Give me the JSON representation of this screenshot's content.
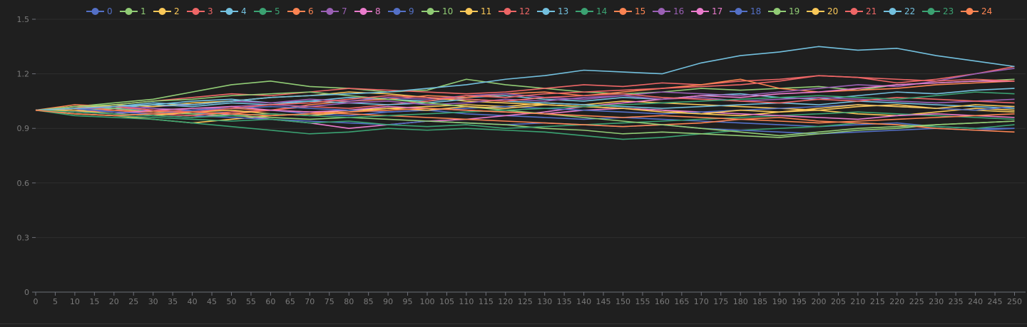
{
  "chart_data": {
    "type": "line",
    "title": "",
    "xlabel": "",
    "ylabel": "",
    "legend_position": "top",
    "grid": true,
    "ylim": [
      0,
      1.5
    ],
    "y_ticks": [
      0,
      0.3,
      0.6,
      0.9,
      1.2,
      1.5
    ],
    "y_tick_labels": [
      "0",
      "0.3",
      "0.6",
      "0.9",
      "1.2",
      "1.5"
    ],
    "x_range": [
      0,
      251
    ],
    "x_tick_interval": 5,
    "x": [
      0,
      10,
      20,
      30,
      40,
      50,
      60,
      70,
      80,
      90,
      100,
      110,
      120,
      130,
      140,
      150,
      160,
      170,
      180,
      190,
      200,
      210,
      220,
      230,
      240,
      250
    ],
    "colors": [
      "#5470c6",
      "#91cc75",
      "#fac858",
      "#ee6666",
      "#73c0de",
      "#3ba272",
      "#fc8452",
      "#9a60b4",
      "#ea7ccc"
    ],
    "series": [
      {
        "name": "0",
        "values": [
          1.0,
          0.99,
          1.01,
          1.0,
          0.98,
          0.99,
          1.0,
          0.98,
          0.97,
          0.99,
          1.0,
          0.98,
          0.97,
          0.96,
          0.95,
          0.96,
          0.95,
          0.94,
          0.93,
          0.92,
          0.91,
          0.92,
          0.93,
          0.91,
          0.9,
          0.9
        ]
      },
      {
        "name": "1",
        "values": [
          1.0,
          1.02,
          1.04,
          1.06,
          1.1,
          1.14,
          1.16,
          1.13,
          1.12,
          1.1,
          1.11,
          1.17,
          1.14,
          1.12,
          1.1,
          1.09,
          1.1,
          1.12,
          1.11,
          1.12,
          1.13,
          1.11,
          1.14,
          1.15,
          1.16,
          1.17
        ]
      },
      {
        "name": "2",
        "values": [
          1.0,
          0.98,
          0.97,
          0.95,
          0.93,
          0.95,
          0.97,
          0.98,
          1.0,
          1.01,
          1.02,
          1.03,
          1.02,
          1.04,
          1.03,
          1.05,
          1.04,
          1.03,
          1.02,
          1.01,
          1.0,
          1.02,
          1.03,
          1.01,
          1.0,
          0.99
        ]
      },
      {
        "name": "3",
        "values": [
          1.0,
          1.01,
          1.03,
          1.05,
          1.07,
          1.09,
          1.08,
          1.1,
          1.12,
          1.11,
          1.1,
          1.09,
          1.1,
          1.12,
          1.14,
          1.13,
          1.15,
          1.14,
          1.16,
          1.17,
          1.19,
          1.18,
          1.15,
          1.17,
          1.2,
          1.24
        ]
      },
      {
        "name": "4",
        "values": [
          1.0,
          1.02,
          1.01,
          1.03,
          1.05,
          1.06,
          1.04,
          1.05,
          1.07,
          1.06,
          1.05,
          1.07,
          1.08,
          1.06,
          1.05,
          1.07,
          1.06,
          1.08,
          1.09,
          1.07,
          1.06,
          1.08,
          1.1,
          1.09,
          1.11,
          1.12
        ]
      },
      {
        "name": "5",
        "values": [
          1.0,
          0.97,
          0.96,
          0.95,
          0.93,
          0.91,
          0.89,
          0.87,
          0.88,
          0.9,
          0.89,
          0.9,
          0.89,
          0.88,
          0.86,
          0.84,
          0.85,
          0.87,
          0.89,
          0.9,
          0.91,
          0.93,
          0.92,
          0.91,
          0.9,
          0.92
        ]
      },
      {
        "name": "6",
        "values": [
          1.0,
          1.03,
          1.02,
          1.0,
          0.99,
          0.98,
          1.0,
          1.03,
          1.05,
          1.06,
          1.08,
          1.07,
          1.09,
          1.1,
          1.08,
          1.1,
          1.12,
          1.14,
          1.17,
          1.12,
          1.1,
          1.11,
          1.12,
          1.14,
          1.15,
          1.16
        ]
      },
      {
        "name": "7",
        "values": [
          1.0,
          1.01,
          1.0,
          1.02,
          1.03,
          1.05,
          1.04,
          1.06,
          1.05,
          1.07,
          1.06,
          1.08,
          1.09,
          1.07,
          1.06,
          1.08,
          1.1,
          1.09,
          1.08,
          1.1,
          1.12,
          1.14,
          1.13,
          1.16,
          1.2,
          1.23
        ]
      },
      {
        "name": "8",
        "values": [
          1.0,
          0.99,
          0.98,
          0.97,
          0.96,
          0.98,
          0.95,
          0.93,
          0.9,
          0.92,
          0.94,
          0.95,
          0.97,
          0.99,
          1.02,
          1.04,
          1.06,
          1.08,
          1.07,
          1.09,
          1.1,
          1.12,
          1.14,
          1.15,
          1.16,
          1.16
        ]
      },
      {
        "name": "9",
        "values": [
          1.0,
          1.0,
          0.99,
          0.98,
          0.97,
          0.96,
          0.95,
          0.94,
          0.93,
          0.92,
          0.94,
          0.93,
          0.92,
          0.93,
          0.92,
          0.91,
          0.92,
          0.9,
          0.89,
          0.88,
          0.87,
          0.88,
          0.89,
          0.9,
          0.89,
          0.9
        ]
      },
      {
        "name": "10",
        "values": [
          1.0,
          1.0,
          1.01,
          0.99,
          0.98,
          0.97,
          0.96,
          0.95,
          0.96,
          0.95,
          0.94,
          0.93,
          0.92,
          0.9,
          0.89,
          0.87,
          0.88,
          0.87,
          0.86,
          0.85,
          0.87,
          0.89,
          0.9,
          0.92,
          0.93,
          0.94
        ]
      },
      {
        "name": "11",
        "values": [
          1.0,
          1.01,
          1.03,
          1.02,
          1.04,
          1.05,
          1.07,
          1.08,
          1.1,
          1.09,
          1.07,
          1.05,
          1.04,
          1.03,
          1.02,
          1.01,
          1.0,
          0.98,
          0.97,
          0.99,
          1.0,
          0.98,
          0.97,
          0.99,
          1.01,
          1.0
        ]
      },
      {
        "name": "12",
        "values": [
          1.0,
          0.99,
          1.0,
          0.98,
          0.97,
          0.99,
          1.0,
          1.02,
          1.01,
          1.03,
          1.05,
          1.08,
          1.07,
          1.09,
          1.1,
          1.11,
          1.12,
          1.13,
          1.14,
          1.16,
          1.19,
          1.18,
          1.17,
          1.16,
          1.17,
          1.16
        ]
      },
      {
        "name": "13",
        "values": [
          1.0,
          1.01,
          1.02,
          1.03,
          1.02,
          1.04,
          1.03,
          1.05,
          1.04,
          1.03,
          1.04,
          1.06,
          1.05,
          1.04,
          1.03,
          1.02,
          1.01,
          1.02,
          1.03,
          1.04,
          1.03,
          1.05,
          1.04,
          1.03,
          1.02,
          1.01
        ]
      },
      {
        "name": "14",
        "values": [
          1.0,
          0.98,
          0.97,
          0.96,
          0.95,
          0.94,
          0.95,
          0.93,
          0.94,
          0.92,
          0.91,
          0.92,
          0.9,
          0.91,
          0.92,
          0.93,
          0.94,
          0.95,
          0.96,
          0.97,
          0.98,
          0.99,
          0.98,
          0.97,
          0.96,
          0.95
        ]
      },
      {
        "name": "15",
        "values": [
          1.0,
          1.02,
          1.0,
          0.99,
          1.0,
          1.01,
          1.0,
          0.99,
          0.98,
          0.97,
          0.96,
          0.95,
          0.94,
          0.93,
          0.92,
          0.91,
          0.92,
          0.93,
          0.95,
          0.96,
          0.94,
          0.93,
          0.92,
          0.9,
          0.89,
          0.88
        ]
      },
      {
        "name": "16",
        "values": [
          1.0,
          1.0,
          1.02,
          1.01,
          1.0,
          1.02,
          1.03,
          1.02,
          1.04,
          1.05,
          1.03,
          1.04,
          1.06,
          1.05,
          1.07,
          1.08,
          1.06,
          1.07,
          1.05,
          1.06,
          1.07,
          1.06,
          1.05,
          1.04,
          1.05,
          1.06
        ]
      },
      {
        "name": "17",
        "values": [
          1.0,
          0.99,
          0.98,
          1.0,
          1.01,
          1.02,
          1.0,
          0.99,
          1.0,
          1.02,
          1.01,
          1.0,
          0.99,
          0.98,
          1.0,
          1.01,
          1.0,
          0.99,
          0.98,
          0.97,
          0.96,
          0.95,
          0.97,
          0.98,
          0.97,
          0.96
        ]
      },
      {
        "name": "18",
        "values": [
          1.0,
          1.01,
          0.99,
          0.98,
          1.0,
          1.01,
          1.02,
          1.01,
          1.0,
          0.99,
          1.0,
          1.01,
          1.02,
          1.01,
          1.0,
          0.99,
          0.98,
          0.99,
          1.0,
          1.01,
          1.02,
          1.03,
          1.02,
          1.01,
          1.0,
          1.02
        ]
      },
      {
        "name": "19",
        "values": [
          1.0,
          1.02,
          1.03,
          1.05,
          1.06,
          1.08,
          1.09,
          1.1,
          1.08,
          1.06,
          1.04,
          1.02,
          1.0,
          0.98,
          0.96,
          0.94,
          0.92,
          0.9,
          0.88,
          0.86,
          0.88,
          0.9,
          0.91,
          0.92,
          0.93,
          0.94
        ]
      },
      {
        "name": "20",
        "values": [
          1.0,
          1.0,
          0.98,
          0.97,
          0.99,
          1.0,
          0.98,
          0.97,
          0.99,
          1.01,
          1.0,
          1.02,
          1.01,
          1.03,
          1.02,
          1.01,
          0.99,
          0.98,
          1.0,
          0.99,
          1.01,
          1.03,
          1.02,
          1.01,
          1.03,
          1.02
        ]
      },
      {
        "name": "21",
        "values": [
          1.0,
          1.01,
          1.02,
          1.0,
          0.99,
          1.01,
          1.03,
          1.04,
          1.06,
          1.08,
          1.07,
          1.06,
          1.05,
          1.07,
          1.08,
          1.09,
          1.07,
          1.06,
          1.05,
          1.04,
          1.06,
          1.05,
          1.07,
          1.06,
          1.05,
          1.04
        ]
      },
      {
        "name": "22",
        "values": [
          1.0,
          1.01,
          1.02,
          1.04,
          1.03,
          1.05,
          1.07,
          1.08,
          1.09,
          1.1,
          1.12,
          1.14,
          1.17,
          1.19,
          1.22,
          1.21,
          1.2,
          1.26,
          1.3,
          1.32,
          1.35,
          1.33,
          1.34,
          1.3,
          1.27,
          1.24
        ]
      },
      {
        "name": "23",
        "values": [
          1.0,
          0.99,
          0.98,
          0.97,
          0.96,
          0.97,
          0.98,
          0.97,
          0.96,
          0.97,
          0.98,
          0.99,
          1.0,
          1.01,
          1.02,
          1.03,
          1.04,
          1.05,
          1.06,
          1.07,
          1.08,
          1.07,
          1.06,
          1.08,
          1.1,
          1.09
        ]
      },
      {
        "name": "24",
        "values": [
          1.0,
          0.98,
          0.97,
          0.98,
          0.99,
          0.98,
          0.97,
          0.98,
          0.99,
          1.0,
          1.01,
          1.0,
          0.99,
          0.98,
          0.97,
          0.96,
          0.97,
          0.96,
          0.95,
          0.94,
          0.93,
          0.94,
          0.95,
          0.96,
          0.97,
          0.98
        ]
      }
    ]
  }
}
